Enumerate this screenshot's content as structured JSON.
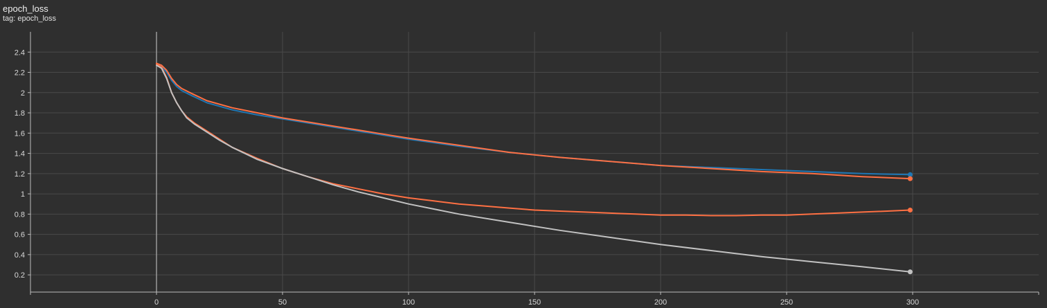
{
  "header": {
    "title": "epoch_loss",
    "subtitle": "tag: epoch_loss"
  },
  "colors": {
    "background": "#2f2f2f",
    "grid": "#4a4a4a",
    "zero_axis": "#9a9a9a"
  },
  "chart_data": {
    "type": "line",
    "title": "epoch_loss",
    "subtitle": "tag: epoch_loss",
    "xlabel": "",
    "ylabel": "",
    "xlim": [
      -50,
      350
    ],
    "ylim": [
      0.03,
      2.6
    ],
    "xticks": [
      0,
      50,
      100,
      150,
      200,
      250,
      300
    ],
    "yticks": [
      0.2,
      0.4,
      0.6,
      0.8,
      1,
      1.2,
      1.4,
      1.6,
      1.8,
      2,
      2.2,
      2.4
    ],
    "grid": true,
    "series": [
      {
        "color": "#1f77b4",
        "x": [
          0,
          2,
          4,
          6,
          8,
          10,
          14,
          20,
          30,
          40,
          50,
          60,
          70,
          80,
          90,
          100,
          120,
          140,
          160,
          180,
          200,
          220,
          240,
          260,
          280,
          299
        ],
        "values": [
          2.28,
          2.26,
          2.2,
          2.12,
          2.06,
          2.02,
          1.97,
          1.9,
          1.83,
          1.78,
          1.74,
          1.7,
          1.66,
          1.62,
          1.58,
          1.54,
          1.47,
          1.41,
          1.36,
          1.32,
          1.28,
          1.26,
          1.24,
          1.22,
          1.2,
          1.19
        ]
      },
      {
        "color": "#ff7043",
        "x": [
          0,
          2,
          4,
          6,
          8,
          10,
          14,
          20,
          30,
          40,
          50,
          60,
          70,
          80,
          90,
          100,
          120,
          140,
          160,
          180,
          200,
          220,
          240,
          260,
          280,
          299
        ],
        "values": [
          2.29,
          2.27,
          2.22,
          2.14,
          2.08,
          2.04,
          1.99,
          1.92,
          1.85,
          1.8,
          1.75,
          1.71,
          1.67,
          1.63,
          1.59,
          1.55,
          1.48,
          1.41,
          1.36,
          1.32,
          1.28,
          1.25,
          1.22,
          1.2,
          1.17,
          1.15
        ]
      },
      {
        "color": "#ff7043",
        "x": [
          0,
          2,
          4,
          6,
          8,
          10,
          12,
          15,
          20,
          25,
          30,
          40,
          50,
          60,
          70,
          80,
          90,
          100,
          110,
          120,
          130,
          140,
          150,
          160,
          170,
          180,
          190,
          200,
          210,
          220,
          230,
          240,
          250,
          260,
          270,
          280,
          290,
          299
        ],
        "values": [
          2.28,
          2.25,
          2.15,
          2.0,
          1.9,
          1.82,
          1.76,
          1.7,
          1.62,
          1.54,
          1.46,
          1.35,
          1.25,
          1.17,
          1.1,
          1.05,
          1.0,
          0.96,
          0.93,
          0.9,
          0.88,
          0.86,
          0.84,
          0.83,
          0.82,
          0.81,
          0.8,
          0.79,
          0.79,
          0.785,
          0.785,
          0.79,
          0.79,
          0.8,
          0.81,
          0.82,
          0.83,
          0.84
        ]
      },
      {
        "color": "#c2c2c2",
        "x": [
          0,
          2,
          4,
          6,
          8,
          10,
          12,
          15,
          20,
          25,
          30,
          40,
          50,
          60,
          70,
          80,
          90,
          100,
          120,
          140,
          160,
          180,
          200,
          220,
          240,
          260,
          280,
          299
        ],
        "values": [
          2.27,
          2.24,
          2.14,
          2.0,
          1.9,
          1.82,
          1.75,
          1.69,
          1.61,
          1.53,
          1.46,
          1.34,
          1.25,
          1.17,
          1.09,
          1.02,
          0.96,
          0.9,
          0.8,
          0.72,
          0.64,
          0.57,
          0.5,
          0.44,
          0.38,
          0.33,
          0.28,
          0.23
        ]
      }
    ]
  }
}
